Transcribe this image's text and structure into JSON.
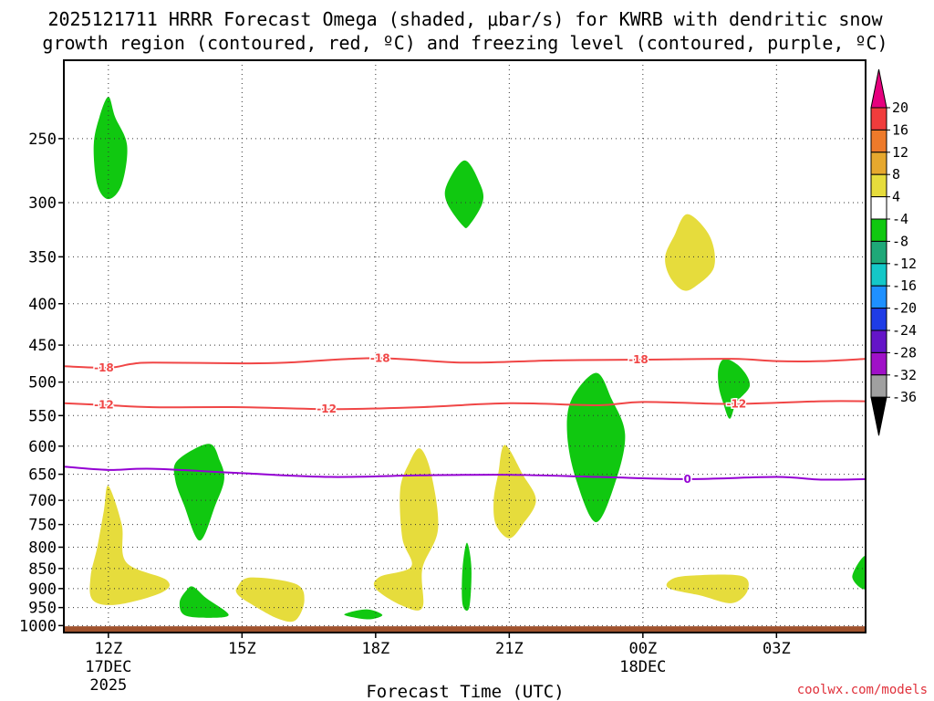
{
  "chart_data": {
    "type": "contour",
    "title_line1": "2025121711 HRRR Forecast Omega (shaded, μbar/s) for KWRB with dendritic snow",
    "title_line2": "growth region (contoured, red, ºC) and freezing level (contoured, purple, ºC)",
    "xlabel": "Forecast Time (UTC)",
    "ylabel": "",
    "credit": "coolwx.com/models",
    "x_ticks": [
      {
        "t": 0,
        "label": "12Z",
        "sub1": "17DEC",
        "sub2": "2025"
      },
      {
        "t": 3,
        "label": "15Z",
        "sub1": "",
        "sub2": ""
      },
      {
        "t": 6,
        "label": "18Z",
        "sub1": "",
        "sub2": ""
      },
      {
        "t": 9,
        "label": "21Z",
        "sub1": "",
        "sub2": ""
      },
      {
        "t": 12,
        "label": "00Z",
        "sub1": "18DEC",
        "sub2": ""
      },
      {
        "t": 15,
        "label": "03Z",
        "sub1": "",
        "sub2": ""
      }
    ],
    "xlim": [
      -1,
      17
    ],
    "y_ticks": [
      250,
      300,
      350,
      400,
      450,
      500,
      550,
      600,
      650,
      700,
      750,
      800,
      850,
      900,
      950,
      1000
    ],
    "ylim": [
      1020,
      200
    ],
    "y_scale": "log-pressure",
    "ground_color": "#a0522d",
    "colorbar": {
      "labels": [
        "20",
        "16",
        "12",
        "8",
        "4",
        "-4",
        "-8",
        "-12",
        "-16",
        "-20",
        "-24",
        "-28",
        "-32",
        "-36"
      ],
      "colors": [
        "#e6007e",
        "#f03c3c",
        "#ee7a2a",
        "#e6a82e",
        "#e6dc3c",
        "#ffffff",
        "#10c810",
        "#1ea878",
        "#14c8c8",
        "#1e90ff",
        "#1e3ce6",
        "#6414c8",
        "#a010c8",
        "#a0a0a0",
        "#000000"
      ]
    },
    "contours": [
      {
        "name": "-18",
        "color": "#f04646",
        "label_t": [
          -0.1,
          6.1,
          11.9
        ],
        "points": [
          [
            -1,
            478
          ],
          [
            0,
            480
          ],
          [
            0.5,
            475
          ],
          [
            1,
            473
          ],
          [
            3,
            474
          ],
          [
            4,
            473
          ],
          [
            6,
            467
          ],
          [
            8,
            473
          ],
          [
            10,
            470
          ],
          [
            12,
            469
          ],
          [
            14,
            468
          ],
          [
            15,
            471
          ],
          [
            16,
            471
          ],
          [
            17,
            468
          ]
        ]
      },
      {
        "name": "-12",
        "color": "#f04646",
        "label_t": [
          -0.1,
          4.9,
          14.1
        ],
        "points": [
          [
            -1,
            531
          ],
          [
            0,
            534
          ],
          [
            1,
            537
          ],
          [
            3,
            537
          ],
          [
            5,
            540
          ],
          [
            7,
            537
          ],
          [
            9,
            531
          ],
          [
            11,
            534
          ],
          [
            12,
            529
          ],
          [
            14,
            532
          ],
          [
            16,
            528
          ],
          [
            17,
            528
          ]
        ]
      },
      {
        "name": "0",
        "color": "#9400d3",
        "label_t": [
          13.0
        ],
        "points": [
          [
            -1,
            636
          ],
          [
            0,
            642
          ],
          [
            1,
            640
          ],
          [
            3,
            648
          ],
          [
            5,
            655
          ],
          [
            7,
            652
          ],
          [
            9,
            651
          ],
          [
            11,
            655
          ],
          [
            13,
            659
          ],
          [
            15,
            655
          ],
          [
            16,
            660
          ],
          [
            17,
            659
          ]
        ]
      }
    ],
    "omega_regions": [
      {
        "value": -8,
        "color": "#10c810",
        "points": [
          [
            0,
            222
          ],
          [
            0.15,
            235
          ],
          [
            0.42,
            255
          ],
          [
            0.3,
            285
          ],
          [
            0,
            297
          ],
          [
            -0.25,
            285
          ],
          [
            -0.33,
            255
          ],
          [
            -0.2,
            235
          ]
        ]
      },
      {
        "value": -8,
        "color": "#10c810",
        "points": [
          [
            8,
            266
          ],
          [
            8.35,
            285
          ],
          [
            8.4,
            300
          ],
          [
            8.1,
            320
          ],
          [
            7.95,
            320
          ],
          [
            7.6,
            300
          ],
          [
            7.6,
            285
          ]
        ]
      },
      {
        "value": 4,
        "color": "#e6dc3c",
        "points": [
          [
            13.0,
            310
          ],
          [
            13.5,
            330
          ],
          [
            13.6,
            360
          ],
          [
            13.2,
            380
          ],
          [
            12.9,
            385
          ],
          [
            12.6,
            370
          ],
          [
            12.5,
            350
          ],
          [
            12.7,
            330
          ]
        ]
      },
      {
        "value": -8,
        "color": "#10c810",
        "points": [
          [
            13.85,
            468
          ],
          [
            14.2,
            480
          ],
          [
            14.4,
            505
          ],
          [
            14.1,
            530
          ],
          [
            13.95,
            555
          ],
          [
            13.8,
            530
          ],
          [
            13.7,
            505
          ],
          [
            13.7,
            480
          ]
        ]
      },
      {
        "value": -8,
        "color": "#10c810",
        "points": [
          [
            10.95,
            487
          ],
          [
            11.3,
            525
          ],
          [
            11.6,
            580
          ],
          [
            11.4,
            660
          ],
          [
            10.95,
            745
          ],
          [
            10.5,
            660
          ],
          [
            10.3,
            580
          ],
          [
            10.4,
            525
          ]
        ]
      },
      {
        "value": -8,
        "color": "#10c810",
        "points": [
          [
            2.25,
            596
          ],
          [
            2.5,
            625
          ],
          [
            2.6,
            660
          ],
          [
            2.4,
            710
          ],
          [
            2.05,
            785
          ],
          [
            1.7,
            710
          ],
          [
            1.5,
            660
          ],
          [
            1.55,
            625
          ]
        ]
      },
      {
        "value": 4,
        "color": "#e6dc3c",
        "points": [
          [
            0,
            672
          ],
          [
            0.3,
            750
          ],
          [
            0.4,
            835
          ],
          [
            1.3,
            878
          ],
          [
            1.2,
            910
          ],
          [
            0.2,
            942
          ],
          [
            -0.35,
            930
          ],
          [
            -0.4,
            870
          ],
          [
            -0.25,
            800
          ],
          [
            -0.1,
            720
          ]
        ]
      },
      {
        "value": -8,
        "color": "#10c810",
        "points": [
          [
            1.9,
            895
          ],
          [
            2.2,
            925
          ],
          [
            2.7,
            970
          ],
          [
            2.2,
            978
          ],
          [
            1.7,
            970
          ],
          [
            1.6,
            935
          ],
          [
            1.75,
            905
          ]
        ]
      },
      {
        "value": 4,
        "color": "#e6dc3c",
        "points": [
          [
            3.2,
            872
          ],
          [
            4.2,
            888
          ],
          [
            4.4,
            930
          ],
          [
            4.2,
            985
          ],
          [
            3.8,
            980
          ],
          [
            3.2,
            940
          ],
          [
            2.9,
            915
          ],
          [
            2.9,
            895
          ]
        ]
      },
      {
        "value": -8,
        "color": "#10c810",
        "points": [
          [
            5.8,
            955
          ],
          [
            6.15,
            970
          ],
          [
            5.9,
            982
          ],
          [
            5.55,
            978
          ],
          [
            5.3,
            968
          ]
        ]
      },
      {
        "value": 4,
        "color": "#e6dc3c",
        "points": [
          [
            7,
            604
          ],
          [
            7.25,
            650
          ],
          [
            7.4,
            760
          ],
          [
            7.05,
            850
          ],
          [
            7.05,
            950
          ],
          [
            6.6,
            945
          ],
          [
            6.0,
            900
          ],
          [
            6.1,
            870
          ],
          [
            6.8,
            845
          ],
          [
            6.6,
            780
          ],
          [
            6.55,
            680
          ],
          [
            6.75,
            630
          ]
        ]
      },
      {
        "value": -8,
        "color": "#10c810",
        "points": [
          [
            8.05,
            790
          ],
          [
            8.15,
            850
          ],
          [
            8.1,
            950
          ],
          [
            7.95,
            940
          ],
          [
            7.95,
            850
          ]
        ]
      },
      {
        "value": 4,
        "color": "#e6dc3c",
        "points": [
          [
            8.9,
            598
          ],
          [
            9.3,
            650
          ],
          [
            9.6,
            700
          ],
          [
            9.3,
            750
          ],
          [
            9.0,
            780
          ],
          [
            8.7,
            750
          ],
          [
            8.65,
            700
          ],
          [
            8.75,
            650
          ]
        ]
      },
      {
        "value": 4,
        "color": "#e6dc3c",
        "points": [
          [
            13.0,
            868
          ],
          [
            14.2,
            868
          ],
          [
            14.35,
            905
          ],
          [
            14.0,
            938
          ],
          [
            13.3,
            918
          ],
          [
            12.6,
            900
          ],
          [
            12.6,
            880
          ]
        ]
      },
      {
        "value": -8,
        "color": "#10c810",
        "points": [
          [
            17.0,
            820
          ],
          [
            17.0,
            900
          ],
          [
            16.7,
            870
          ]
        ]
      }
    ]
  }
}
